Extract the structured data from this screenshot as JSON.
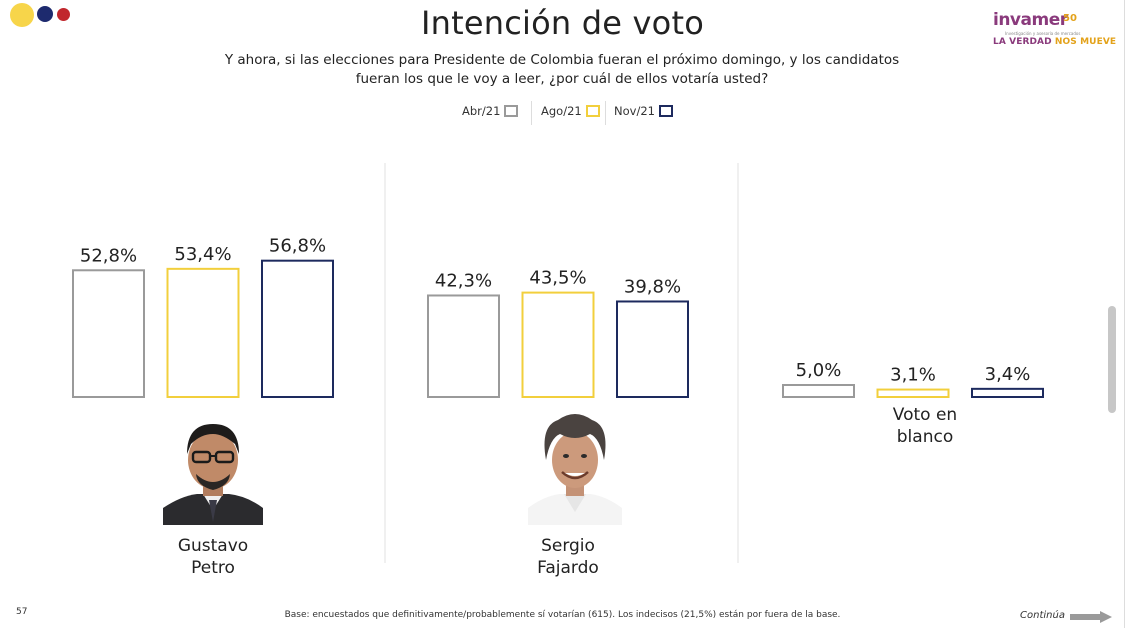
{
  "page": {
    "title": "Intención de voto",
    "subtitle_line1": "Y ahora, si las elecciones para Presidente de Colombia fueran el próximo domingo, y los candidatos",
    "subtitle_line2": "fueran los que le voy a leer, ¿por cuál de ellos votaría usted?",
    "slide_number": "57",
    "footnote": "Base: encuestados que definitivamente/probablemente sí votarían (615). Los indecisos (21,5%) están por fuera de la base.",
    "continue_label": "Continúa"
  },
  "logo": {
    "brand": "invamer",
    "anniversary": "50",
    "small_text": "Investigación y asesoría de mercados",
    "tagline_part1": "LA VERDAD",
    "tagline_part2": "NOS MUEVE"
  },
  "colors": {
    "abr": "#9a9a9a",
    "ago": "#f2cf3c",
    "nov": "#1d2a5e",
    "brand_purple": "#8a3a7c",
    "brand_orange": "#e3a21a"
  },
  "chart_data": {
    "type": "bar",
    "title": "Intención de voto",
    "categories": [
      "Gustavo Petro",
      "Sergio Fajardo",
      "Voto en blanco"
    ],
    "category_lines": [
      [
        "Gustavo",
        "Petro"
      ],
      [
        "Sergio",
        "Fajardo"
      ],
      [
        "Voto en",
        "blanco"
      ]
    ],
    "series": [
      {
        "name": "Abr/21",
        "values": [
          52.8,
          42.3,
          5.0
        ],
        "labels": [
          "52,8%",
          "42,3%",
          "5,0%"
        ]
      },
      {
        "name": "Ago/21",
        "values": [
          53.4,
          43.5,
          3.1
        ],
        "labels": [
          "53,4%",
          "43,5%",
          "3,1%"
        ]
      },
      {
        "name": "Nov/21",
        "values": [
          56.8,
          39.8,
          3.4
        ],
        "labels": [
          "56,8%",
          "39,8%",
          "3,4%"
        ]
      }
    ],
    "ylim": [
      0,
      100
    ],
    "grid": false,
    "legend_position": "top-center"
  }
}
